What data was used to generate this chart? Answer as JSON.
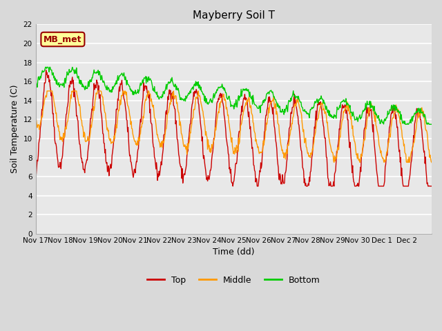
{
  "title": "Mayberry Soil T",
  "xlabel": "Time (dd)",
  "ylabel": "Soil Temperature (C)",
  "ylim": [
    0,
    22
  ],
  "yticks": [
    0,
    2,
    4,
    6,
    8,
    10,
    12,
    14,
    16,
    18,
    20,
    22
  ],
  "xtick_labels": [
    "Nov 17",
    "Nov 18",
    "Nov 19",
    "Nov 20",
    "Nov 21",
    "Nov 22",
    "Nov 23",
    "Nov 24",
    "Nov 25",
    "Nov 26",
    "Nov 27",
    "Nov 28",
    "Nov 29",
    "Nov 30",
    "Dec 1",
    "Dec 2"
  ],
  "n_days": 16,
  "legend_labels": [
    "Top",
    "Middle",
    "Bottom"
  ],
  "legend_colors": [
    "#cc0000",
    "#ff9900",
    "#00cc00"
  ],
  "line_colors": [
    "#cc0000",
    "#ff9900",
    "#00cc00"
  ],
  "annotation_text": "MB_met",
  "annotation_bg": "#ffff99",
  "annotation_border": "#990000",
  "fig_bg": "#d9d9d9",
  "plot_bg": "#e8e8e8",
  "grid_color": "#ffffff"
}
